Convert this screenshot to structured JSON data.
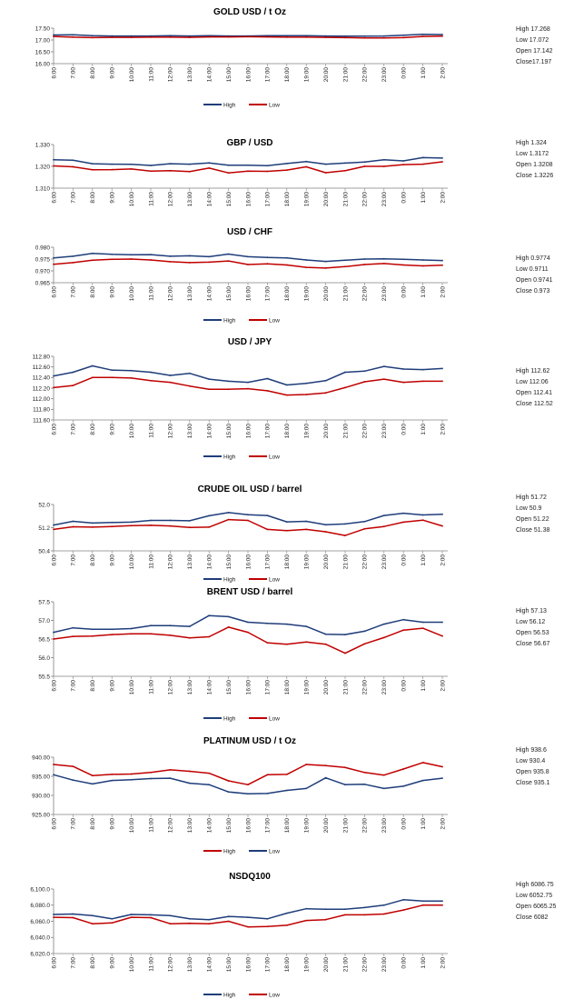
{
  "times": [
    "6:00",
    "7:00",
    "8:00",
    "9:00",
    "10:00",
    "11:00",
    "12:00",
    "13:00",
    "14:00",
    "15:00",
    "16:00",
    "17:00",
    "18:00",
    "19:00",
    "20:00",
    "21:00",
    "22:00",
    "23:00",
    "0:00",
    "1:00",
    "2:00"
  ],
  "colors": {
    "high": "#1f3d7a",
    "low": "#c00000"
  },
  "chart_data": [
    {
      "type": "line",
      "title": "GOLD  USD / t Oz",
      "ylim": [
        16.0,
        17.5
      ],
      "yticks": [
        "17.50",
        "17.00",
        "16.50",
        "16.00"
      ],
      "yvals": [
        17.5,
        17.0,
        16.5,
        16.0
      ],
      "legend": [
        {
          "label": "High",
          "color": "#1f3d7a"
        },
        {
          "label": "Low",
          "color": "#c00000"
        }
      ],
      "series": [
        {
          "name": "High",
          "color": "#1f3d7a",
          "values": [
            17.21,
            17.22,
            17.18,
            17.17,
            17.17,
            17.17,
            17.18,
            17.17,
            17.18,
            17.17,
            17.17,
            17.18,
            17.18,
            17.18,
            17.17,
            17.16,
            17.16,
            17.17,
            17.2,
            17.24,
            17.23
          ]
        },
        {
          "name": "Low",
          "color": "#c00000",
          "values": [
            17.15,
            17.12,
            17.1,
            17.11,
            17.11,
            17.12,
            17.12,
            17.11,
            17.13,
            17.13,
            17.14,
            17.13,
            17.12,
            17.12,
            17.11,
            17.1,
            17.09,
            17.09,
            17.1,
            17.15,
            17.16
          ]
        }
      ],
      "stats": [
        "High 17.268",
        "Low 17.072",
        "Open 17.142",
        "Close17.197"
      ]
    },
    {
      "type": "line",
      "title": "GBP / USD",
      "ylim": [
        1.31,
        1.33
      ],
      "yticks": [
        "1.330",
        "1.320",
        "1.310"
      ],
      "yvals": [
        1.33,
        1.32,
        1.31
      ],
      "legend": [],
      "series": [
        {
          "name": "High",
          "color": "#1f3d7a",
          "values": [
            1.323,
            1.3228,
            1.3212,
            1.321,
            1.3209,
            1.3204,
            1.3212,
            1.321,
            1.3216,
            1.3205,
            1.3205,
            1.3203,
            1.3213,
            1.3222,
            1.321,
            1.3215,
            1.322,
            1.323,
            1.3225,
            1.324,
            1.3238
          ]
        },
        {
          "name": "Low",
          "color": "#c00000",
          "values": [
            1.3202,
            1.3198,
            1.3184,
            1.3185,
            1.3188,
            1.3178,
            1.318,
            1.3176,
            1.3192,
            1.317,
            1.3178,
            1.3177,
            1.3183,
            1.3198,
            1.3171,
            1.318,
            1.32,
            1.32,
            1.3208,
            1.321,
            1.3221
          ]
        }
      ],
      "stats": [
        "High  1.324",
        "Low   1.3172",
        "Open  1.3208",
        "Close  1.3226"
      ]
    },
    {
      "type": "line",
      "title": "USD / CHF",
      "ylim": [
        0.965,
        0.98
      ],
      "yticks": [
        "0.980",
        "0.975",
        "0.970",
        "0.965"
      ],
      "yvals": [
        0.98,
        0.975,
        0.97,
        0.965
      ],
      "legend": [
        {
          "label": "High",
          "color": "#1f3d7a"
        },
        {
          "label": "Low",
          "color": "#c00000"
        }
      ],
      "series": [
        {
          "name": "High",
          "color": "#1f3d7a",
          "values": [
            0.9755,
            0.9762,
            0.9774,
            0.977,
            0.9768,
            0.9769,
            0.9762,
            0.9764,
            0.976,
            0.9771,
            0.976,
            0.9757,
            0.9755,
            0.9746,
            0.974,
            0.9745,
            0.975,
            0.9751,
            0.9749,
            0.9746,
            0.9744
          ]
        },
        {
          "name": "Low",
          "color": "#c00000",
          "values": [
            0.9728,
            0.9735,
            0.9745,
            0.9749,
            0.975,
            0.9746,
            0.9739,
            0.9735,
            0.9737,
            0.9742,
            0.9727,
            0.973,
            0.9725,
            0.9715,
            0.9712,
            0.9718,
            0.9727,
            0.9731,
            0.9725,
            0.9721,
            0.9724
          ]
        }
      ],
      "stats": [
        "High 0.9774",
        "Low  0.9711",
        "Open  0.9741",
        "Close 0.973"
      ]
    },
    {
      "type": "line",
      "title": "USD / JPY",
      "ylim": [
        111.6,
        112.8
      ],
      "yticks": [
        "112.80",
        "112.60",
        "112.40",
        "112.20",
        "112.00",
        "111.80",
        "111.60"
      ],
      "yvals": [
        112.8,
        112.6,
        112.4,
        112.2,
        112.0,
        111.8,
        111.6
      ],
      "legend": [
        {
          "label": "High",
          "color": "#1f3d7a"
        },
        {
          "label": "Low",
          "color": "#c00000"
        }
      ],
      "series": [
        {
          "name": "High",
          "color": "#1f3d7a",
          "values": [
            112.43,
            112.5,
            112.62,
            112.54,
            112.53,
            112.5,
            112.44,
            112.48,
            112.37,
            112.33,
            112.31,
            112.38,
            112.26,
            112.29,
            112.34,
            112.5,
            112.52,
            112.61,
            112.56,
            112.55,
            112.57
          ]
        },
        {
          "name": "Low",
          "color": "#c00000",
          "values": [
            112.21,
            112.25,
            112.4,
            112.4,
            112.39,
            112.34,
            112.31,
            112.24,
            112.18,
            112.18,
            112.19,
            112.15,
            112.07,
            112.08,
            112.11,
            112.21,
            112.32,
            112.37,
            112.31,
            112.33,
            112.33
          ]
        }
      ],
      "stats": [
        "High  112.62",
        "Low    112.06",
        "Open  112.41",
        "Close  112.52"
      ]
    },
    {
      "type": "line",
      "title": "CRUDE OIL USD / barrel",
      "ylim": [
        50.4,
        52.0
      ],
      "yticks": [
        "52.0",
        "51.2",
        "50.4"
      ],
      "yvals": [
        52.0,
        51.2,
        50.4
      ],
      "legend": [
        {
          "label": "High",
          "color": "#1f3d7a"
        },
        {
          "label": "Low",
          "color": "#c00000"
        }
      ],
      "series": [
        {
          "name": "High",
          "color": "#1f3d7a",
          "values": [
            51.29,
            51.42,
            51.36,
            51.38,
            51.39,
            51.45,
            51.45,
            51.44,
            51.61,
            51.72,
            51.65,
            51.62,
            51.4,
            51.42,
            51.3,
            51.33,
            51.41,
            51.62,
            51.7,
            51.64,
            51.66
          ]
        },
        {
          "name": "Low",
          "color": "#c00000",
          "values": [
            51.14,
            51.23,
            51.22,
            51.24,
            51.27,
            51.28,
            51.26,
            51.21,
            51.22,
            51.48,
            51.45,
            51.14,
            51.1,
            51.14,
            51.06,
            50.93,
            51.16,
            51.24,
            51.39,
            51.46,
            51.26
          ]
        }
      ],
      "stats": [
        "High  51.72",
        "Low    50.9",
        "Open  51.22",
        "Close  51.38"
      ]
    },
    {
      "type": "line",
      "title": "BRENT USD / barrel",
      "ylim": [
        55.5,
        57.5
      ],
      "yticks": [
        "57.5",
        "57.0",
        "56.5",
        "56.0",
        "55.5"
      ],
      "yvals": [
        57.5,
        57.0,
        56.5,
        56.0,
        55.5
      ],
      "legend": [
        {
          "label": "High",
          "color": "#1f3d7a"
        },
        {
          "label": "Low",
          "color": "#c00000"
        }
      ],
      "series": [
        {
          "name": "High",
          "color": "#1f3d7a",
          "values": [
            56.68,
            56.8,
            56.76,
            56.76,
            56.78,
            56.86,
            56.86,
            56.84,
            57.13,
            57.1,
            56.95,
            56.92,
            56.9,
            56.84,
            56.63,
            56.62,
            56.71,
            56.9,
            57.02,
            56.95,
            56.95
          ]
        },
        {
          "name": "Low",
          "color": "#c00000",
          "values": [
            56.5,
            56.57,
            56.58,
            56.62,
            56.64,
            56.64,
            56.6,
            56.53,
            56.56,
            56.82,
            56.68,
            56.4,
            56.36,
            56.42,
            56.36,
            56.12,
            56.37,
            56.54,
            56.74,
            56.79,
            56.58
          ]
        }
      ],
      "stats": [
        "High  57.13",
        "Low   56.12",
        "Open  56.53",
        "Close  56.67"
      ]
    },
    {
      "type": "line",
      "title": "PLATINUM USD / t Oz",
      "ylim": [
        925.0,
        940.0
      ],
      "yticks": [
        "940.00",
        "935.00",
        "930.00",
        "925.00"
      ],
      "yvals": [
        940.0,
        935.0,
        930.0,
        925.0
      ],
      "legend": [
        {
          "label": "High",
          "color": "#c00000"
        },
        {
          "label": "Low",
          "color": "#1f3d7a"
        }
      ],
      "series": [
        {
          "name": "Low",
          "color": "#1f3d7a",
          "values": [
            935.4,
            934.0,
            933.0,
            933.9,
            934.1,
            934.4,
            934.5,
            933.2,
            932.8,
            930.9,
            930.4,
            930.5,
            931.3,
            931.8,
            934.6,
            932.8,
            932.9,
            931.8,
            932.4,
            933.9,
            934.5
          ]
        },
        {
          "name": "High",
          "color": "#c00000",
          "values": [
            938.1,
            937.6,
            935.2,
            935.5,
            935.6,
            936.0,
            936.7,
            936.3,
            935.8,
            933.8,
            932.8,
            935.4,
            935.5,
            938.1,
            937.8,
            937.3,
            936.0,
            935.3,
            936.9,
            938.6,
            937.5
          ]
        }
      ],
      "stats": [
        "High  938.6",
        "Low    930.4",
        "Open  935.8",
        "Close  935.1"
      ]
    },
    {
      "type": "line",
      "title": "NSDQ100",
      "ylim": [
        6020.0,
        6100.0
      ],
      "yticks": [
        "6,100.0",
        "6,080.0",
        "6,060.0",
        "6,040.0",
        "6,020.0"
      ],
      "yvals": [
        6100,
        6080,
        6060,
        6040,
        6020
      ],
      "legend": [
        {
          "label": "High",
          "color": "#1f3d7a"
        },
        {
          "label": "Low",
          "color": "#c00000"
        }
      ],
      "series": [
        {
          "name": "High",
          "color": "#1f3d7a",
          "values": [
            6068.5,
            6069.0,
            6067.0,
            6063.0,
            6068.5,
            6068.0,
            6067.0,
            6063.0,
            6062.0,
            6066.0,
            6065.0,
            6063.0,
            6070.0,
            6075.5,
            6075.0,
            6075.0,
            6077.0,
            6080.0,
            6086.75,
            6085.0,
            6085.0
          ]
        },
        {
          "name": "Low",
          "color": "#c00000",
          "values": [
            6065.0,
            6064.5,
            6057.0,
            6058.0,
            6065.0,
            6064.5,
            6057.0,
            6057.5,
            6057.0,
            6060.0,
            6053.0,
            6053.5,
            6055.0,
            6061.0,
            6062.0,
            6068.0,
            6068.0,
            6069.0,
            6074.0,
            6080.0,
            6080.0
          ]
        }
      ],
      "stats": [
        "High  6086.75",
        "Low    6052.75",
        "Open  6065.25",
        "Close  6082"
      ]
    }
  ]
}
